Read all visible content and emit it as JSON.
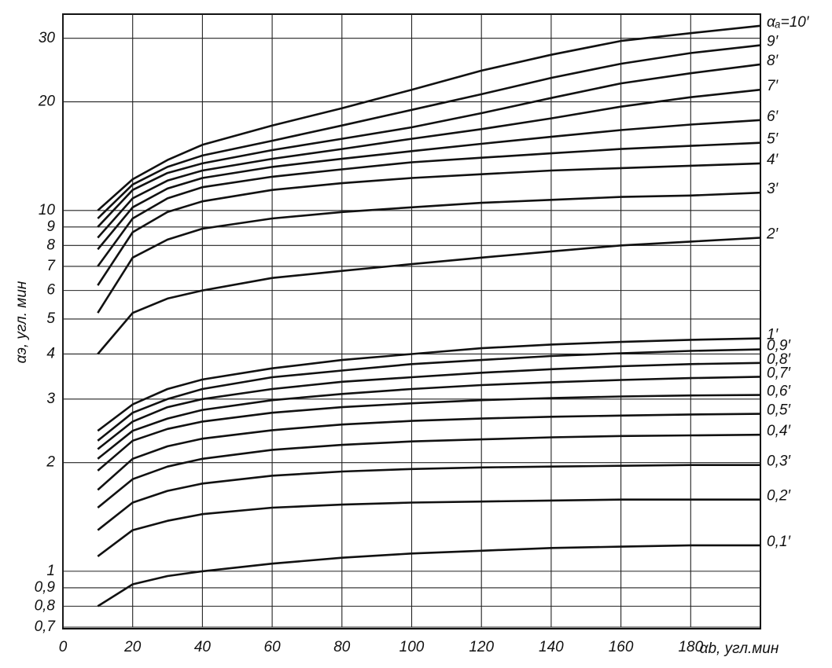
{
  "chart_data": {
    "type": "line",
    "x_label": "αb, угл.мин",
    "y_label": "αэ, угл. мин",
    "log_y": true,
    "grid": true,
    "color": "#111111",
    "xlim": [
      0,
      200
    ],
    "ylim": [
      0.7,
      35
    ],
    "xticks": [
      0,
      20,
      40,
      60,
      80,
      100,
      120,
      140,
      160,
      180
    ],
    "yticks": [
      {
        "value": 0.7,
        "label": "0,7"
      },
      {
        "value": 0.8,
        "label": "0,8"
      },
      {
        "value": 0.9,
        "label": "0,9"
      },
      1,
      2,
      3,
      4,
      5,
      6,
      7,
      8,
      9,
      10,
      20,
      30
    ],
    "x": [
      10,
      20,
      30,
      40,
      60,
      80,
      100,
      120,
      140,
      160,
      180,
      200
    ],
    "series": [
      {
        "name": "αₐ=10′",
        "values": [
          10,
          12.2,
          13.8,
          15.2,
          17.2,
          19.2,
          21.6,
          24.4,
          27,
          29.5,
          31,
          32.5
        ]
      },
      {
        "name": "9′",
        "values": [
          9.5,
          11.8,
          13.2,
          14.2,
          15.6,
          17.2,
          19,
          21,
          23.3,
          25.5,
          27.3,
          28.7
        ]
      },
      {
        "name": "8′",
        "values": [
          9.0,
          11.4,
          12.7,
          13.5,
          14.7,
          15.8,
          17,
          18.6,
          20.5,
          22.5,
          24,
          25.4
        ]
      },
      {
        "name": "7′",
        "values": [
          8.4,
          10.8,
          12.1,
          12.9,
          13.9,
          14.8,
          15.8,
          16.8,
          18,
          19.4,
          20.6,
          21.6
        ]
      },
      {
        "name": "6′",
        "values": [
          7.8,
          10.2,
          11.5,
          12.3,
          13.2,
          13.9,
          14.6,
          15.3,
          16,
          16.7,
          17.3,
          17.8
        ]
      },
      {
        "name": "5′",
        "values": [
          7.0,
          9.5,
          10.8,
          11.6,
          12.4,
          13,
          13.6,
          14,
          14.4,
          14.8,
          15.1,
          15.4
        ]
      },
      {
        "name": "4′",
        "values": [
          6.2,
          8.7,
          9.9,
          10.6,
          11.4,
          11.9,
          12.3,
          12.6,
          12.9,
          13.1,
          13.3,
          13.5
        ]
      },
      {
        "name": "3′",
        "values": [
          5.2,
          7.4,
          8.3,
          8.9,
          9.5,
          9.9,
          10.2,
          10.5,
          10.7,
          10.9,
          11.0,
          11.2
        ]
      },
      {
        "name": "2′",
        "values": [
          4.0,
          5.2,
          5.7,
          6.0,
          6.5,
          6.8,
          7.1,
          7.4,
          7.7,
          8.0,
          8.2,
          8.4
        ]
      },
      {
        "name": "1′",
        "values": [
          2.45,
          2.9,
          3.2,
          3.4,
          3.65,
          3.85,
          4.0,
          4.15,
          4.25,
          4.32,
          4.38,
          4.42
        ]
      },
      {
        "name": "0,9′",
        "values": [
          2.3,
          2.75,
          3.0,
          3.2,
          3.45,
          3.6,
          3.75,
          3.85,
          3.95,
          4.02,
          4.08,
          4.12
        ]
      },
      {
        "name": "0,8′",
        "values": [
          2.18,
          2.6,
          2.85,
          3.0,
          3.2,
          3.35,
          3.45,
          3.55,
          3.63,
          3.7,
          3.75,
          3.78
        ]
      },
      {
        "name": "0,7′",
        "values": [
          2.05,
          2.45,
          2.65,
          2.8,
          2.98,
          3.1,
          3.2,
          3.28,
          3.34,
          3.39,
          3.43,
          3.46
        ]
      },
      {
        "name": "0,6′",
        "values": [
          1.9,
          2.3,
          2.48,
          2.6,
          2.75,
          2.85,
          2.92,
          2.98,
          3.02,
          3.05,
          3.07,
          3.08
        ]
      },
      {
        "name": "0,5′",
        "values": [
          1.68,
          2.05,
          2.22,
          2.33,
          2.46,
          2.55,
          2.61,
          2.65,
          2.68,
          2.7,
          2.72,
          2.73
        ]
      },
      {
        "name": "0,4′",
        "values": [
          1.5,
          1.8,
          1.95,
          2.05,
          2.17,
          2.24,
          2.29,
          2.32,
          2.35,
          2.37,
          2.38,
          2.39
        ]
      },
      {
        "name": "0,3′",
        "values": [
          1.3,
          1.55,
          1.67,
          1.75,
          1.84,
          1.89,
          1.92,
          1.94,
          1.95,
          1.96,
          1.97,
          1.97
        ]
      },
      {
        "name": "0,2′",
        "values": [
          1.1,
          1.3,
          1.38,
          1.44,
          1.5,
          1.53,
          1.55,
          1.56,
          1.57,
          1.58,
          1.58,
          1.58
        ]
      },
      {
        "name": "0,1′",
        "values": [
          0.8,
          0.92,
          0.97,
          1.0,
          1.05,
          1.09,
          1.12,
          1.14,
          1.16,
          1.17,
          1.18,
          1.18
        ]
      }
    ]
  }
}
